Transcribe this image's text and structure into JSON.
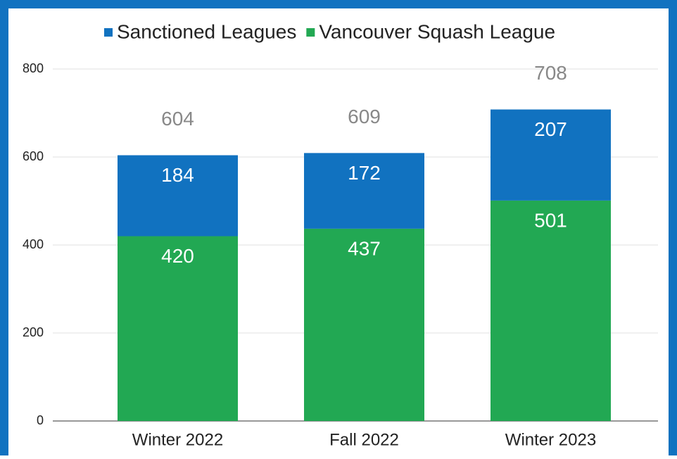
{
  "chart_data": {
    "type": "stacked_bar",
    "categories": [
      "Winter 2022",
      "Fall 2022",
      "Winter 2023"
    ],
    "series": [
      {
        "name": "Sanctioned Leagues",
        "color": "#1172c0",
        "values": [
          184,
          172,
          207
        ]
      },
      {
        "name": "Vancouver Squash League",
        "color": "#22a853",
        "values": [
          420,
          437,
          501
        ]
      }
    ],
    "totals": [
      604,
      609,
      708
    ],
    "ylim": [
      0,
      800
    ],
    "yticks": [
      0,
      200,
      400,
      600,
      800
    ],
    "grid": true,
    "legend": "top"
  }
}
